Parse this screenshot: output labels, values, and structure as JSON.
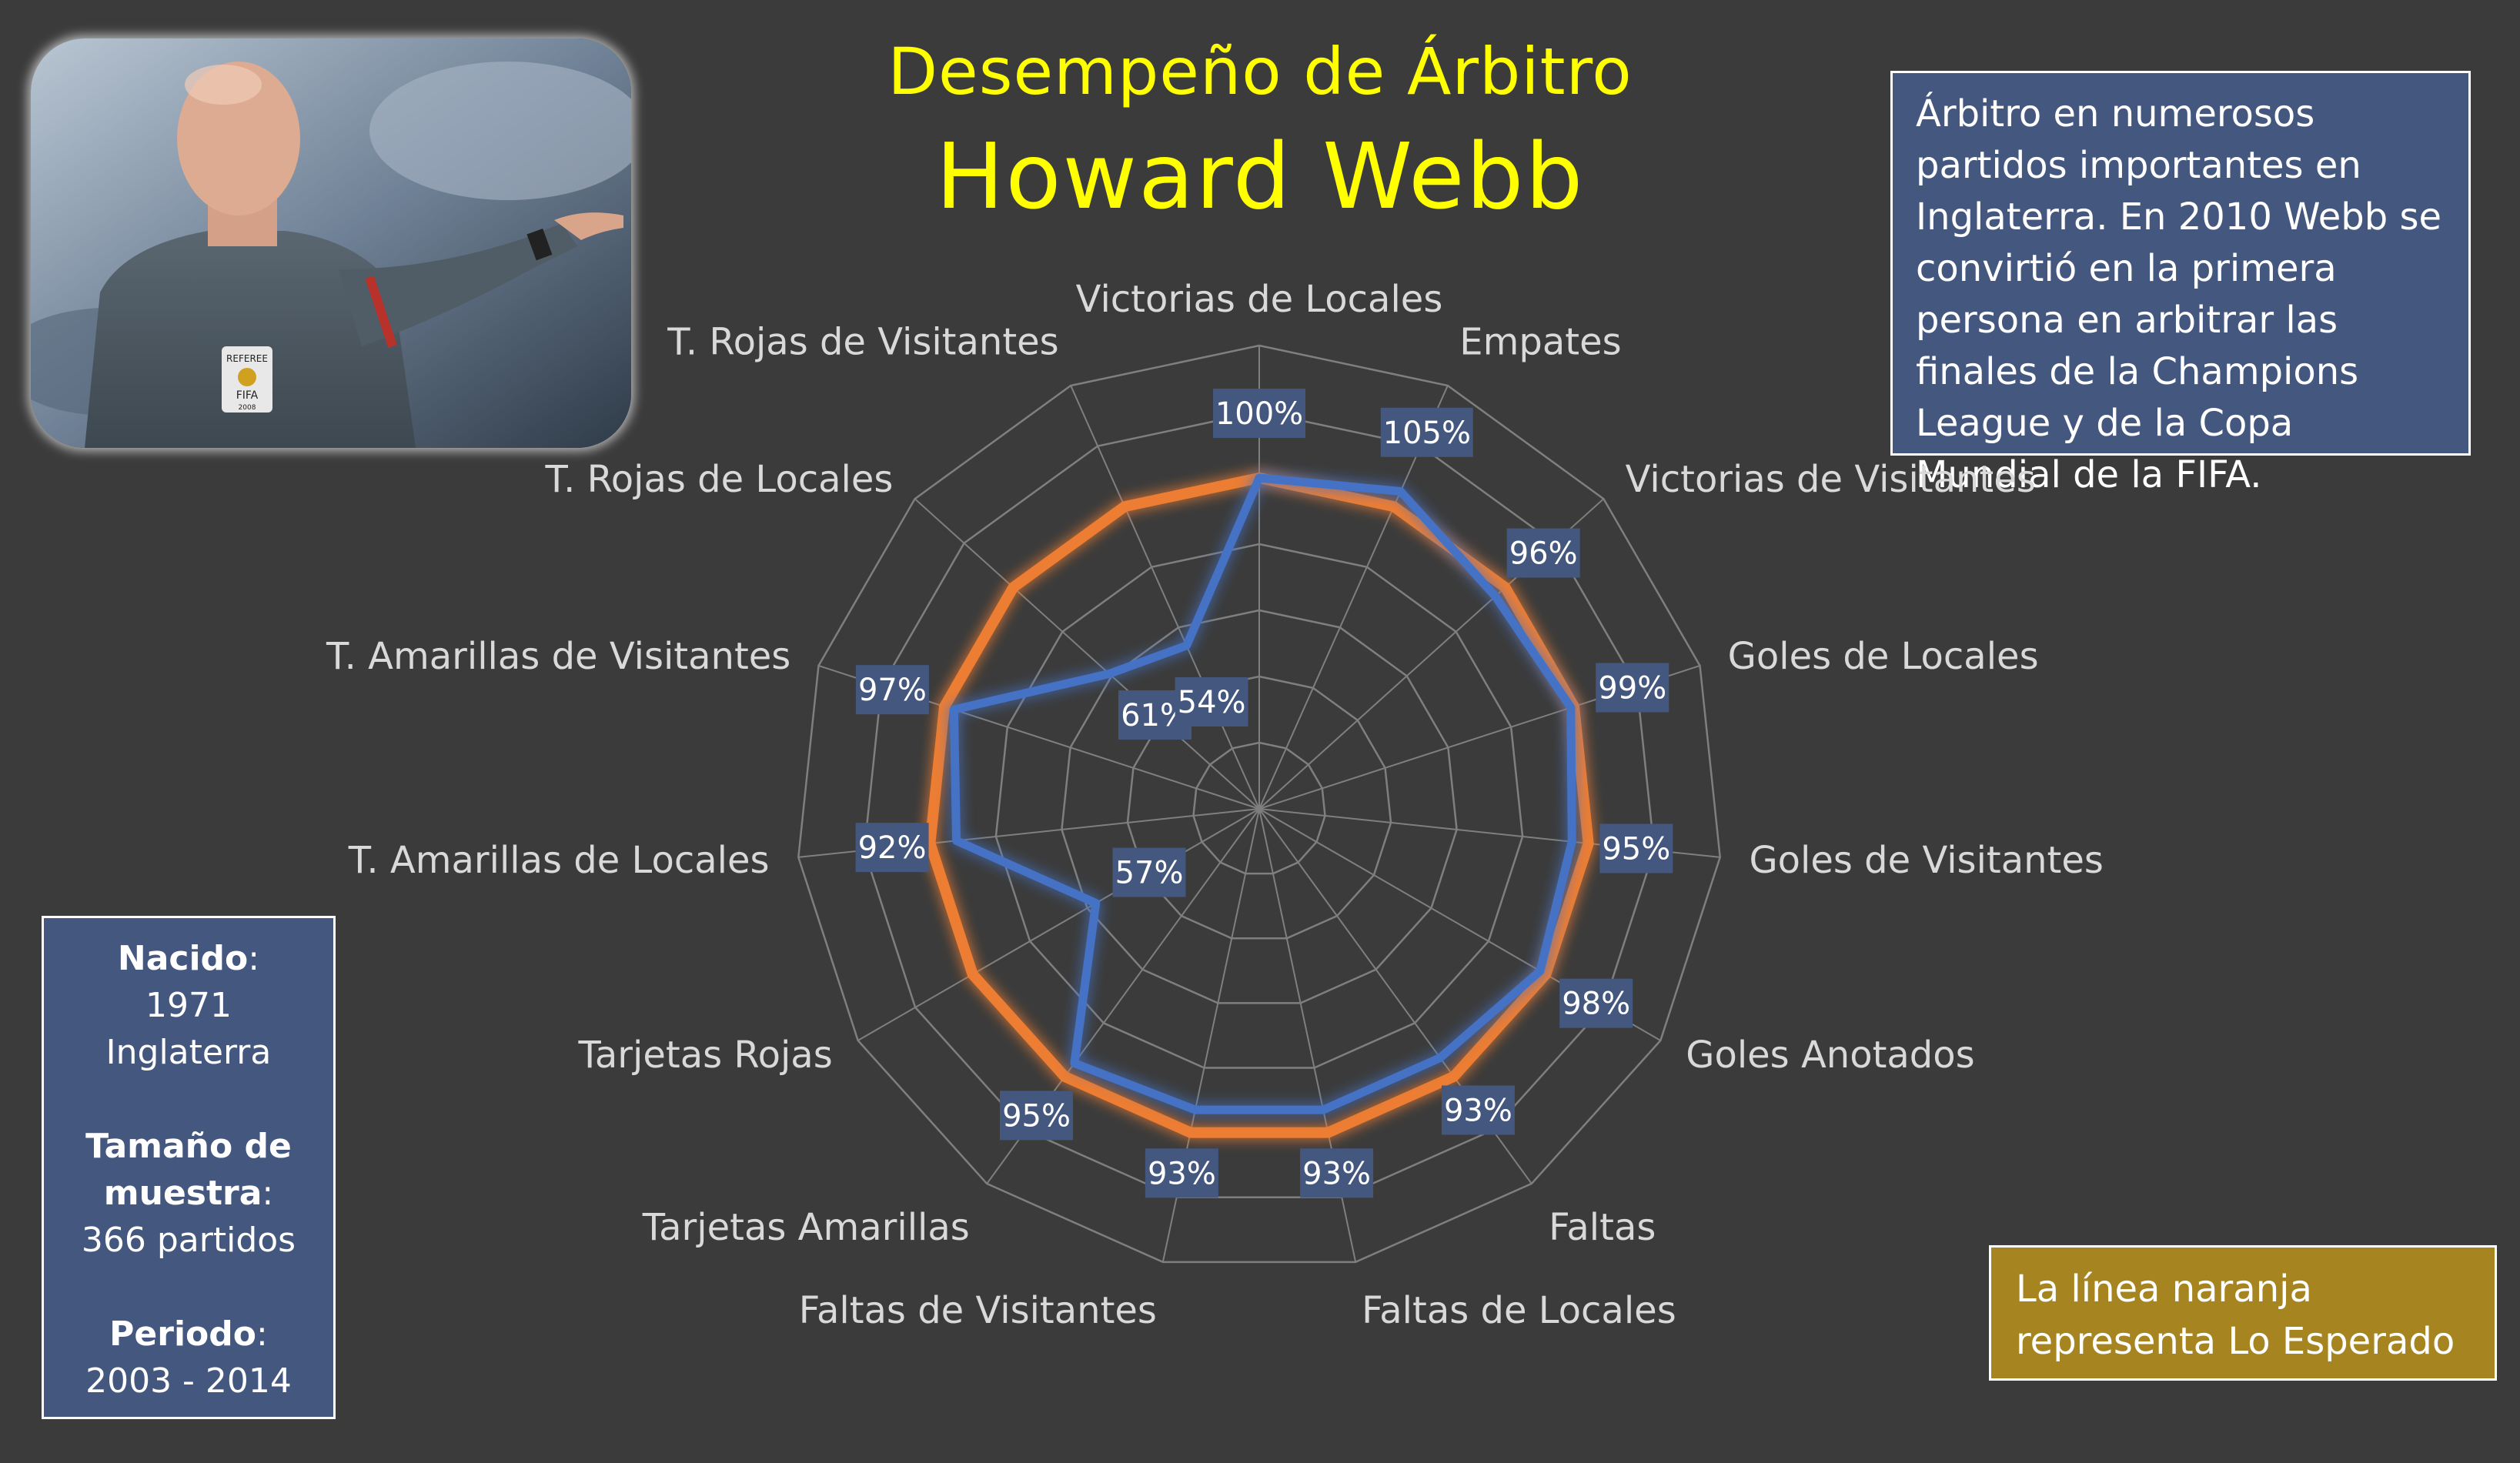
{
  "header": {
    "title": "Desempeño de Árbitro",
    "name": "Howard Webb"
  },
  "info_text": "Árbitro en numerosos partidos importantes en Inglaterra. En 2010 Webb se convirtió en la primera persona en arbitrar las finales de la Champions League y de la Copa Mundial de la FIFA.",
  "bio": {
    "born_label": "Nacido",
    "born_year": "1971",
    "born_country": "Inglaterra",
    "sample_label_1": "Tamaño de",
    "sample_label_2": "muestra",
    "sample_value": "366 partidos",
    "period_label": "Periodo",
    "period_value": "2003 - 2014"
  },
  "legend_note": "La línea naranja representa Lo Esperado",
  "photo": {
    "badge_text": "REFEREE",
    "badge_org": "FIFA",
    "badge_year": "2008"
  },
  "colors": {
    "actual": "#4472c4",
    "expected": "#ed7d31",
    "label_box": "#44577f",
    "grid": "#7f7f7f"
  },
  "chart_data": {
    "type": "radar",
    "categories": [
      "Victorias de Locales",
      "Empates",
      "Victorias de Visitantes",
      "Goles de Locales",
      "Goles de Visitantes",
      "Goles Anotados",
      "Faltas",
      "Faltas de Locales",
      "Faltas de Visitantes",
      "Tarjetas Amarillas",
      "Tarjetas Rojas",
      "T. Amarillas de Locales",
      "T. Amarillas de Visitantes",
      "T. Rojas de Locales",
      "T. Rojas de Visitantes"
    ],
    "series": [
      {
        "values": [
          100,
          105,
          96,
          99,
          95,
          98,
          93,
          93,
          93,
          95,
          57,
          92,
          97,
          61,
          54
        ],
        "labels": [
          "100%",
          "105%",
          "96%",
          "99%",
          "95%",
          "98%",
          "93%",
          "93%",
          "93%",
          "95%",
          "57%",
          "92%",
          "97%",
          "61%",
          "54%"
        ]
      },
      {
        "values": [
          100,
          100,
          100,
          100,
          100,
          100,
          100,
          100,
          100,
          100,
          100,
          100,
          100,
          100,
          100
        ]
      }
    ],
    "r_range": [
      0,
      140
    ],
    "grid_rings": 7
  }
}
